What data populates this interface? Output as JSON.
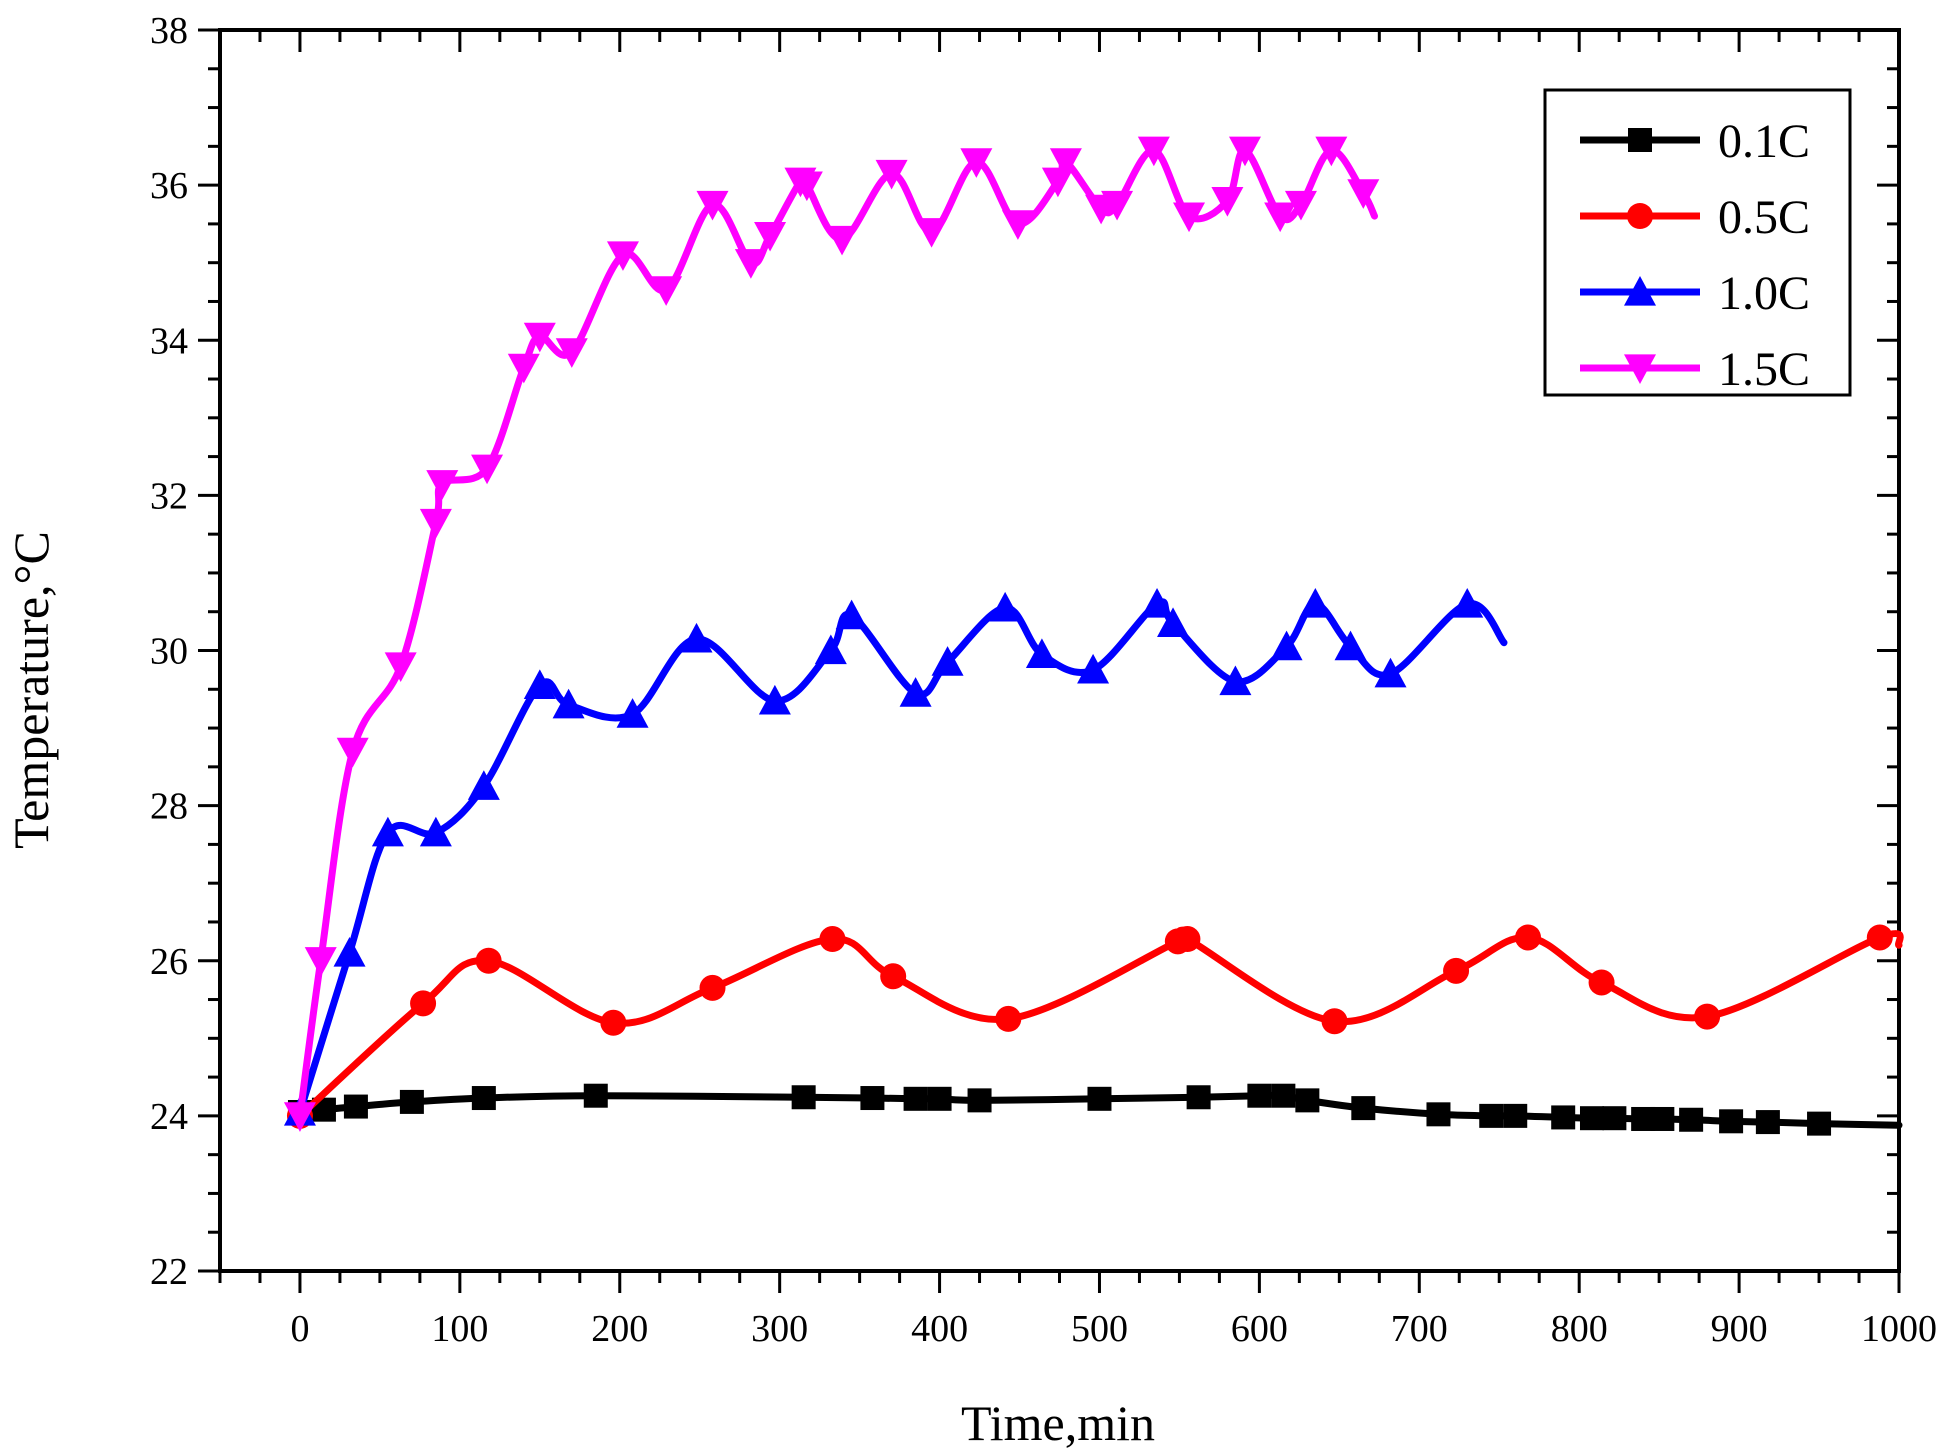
{
  "chart_data": {
    "type": "line",
    "title": "",
    "xlabel": "Time,min",
    "ylabel": "Temperature,°C",
    "xlim": [
      -50,
      1000
    ],
    "ylim": [
      22,
      38
    ],
    "xticks": [
      0,
      100,
      200,
      300,
      400,
      500,
      600,
      700,
      800,
      900,
      1000
    ],
    "yticks": [
      22,
      24,
      26,
      28,
      30,
      32,
      34,
      36,
      38
    ],
    "grid": false,
    "legend_position": "top-right",
    "series": [
      {
        "name": "0.1C",
        "color": "#000000",
        "marker": "square",
        "x": [
          0,
          15,
          35,
          70,
          115,
          185,
          315,
          358,
          385,
          400,
          425,
          500,
          562,
          600,
          615,
          630,
          665,
          712,
          745,
          760,
          790,
          808,
          822,
          840,
          852,
          870,
          895,
          918,
          950
        ],
        "y": [
          24.05,
          24.08,
          24.12,
          24.18,
          24.23,
          24.26,
          24.24,
          24.23,
          24.22,
          24.22,
          24.2,
          24.22,
          24.24,
          24.26,
          24.26,
          24.2,
          24.1,
          24.02,
          24.0,
          24.0,
          23.98,
          23.97,
          23.97,
          23.96,
          23.96,
          23.95,
          23.93,
          23.92,
          23.9
        ],
        "curve_end": [
          1000,
          23.88
        ]
      },
      {
        "name": "0.5C",
        "color": "#ff0000",
        "marker": "circle",
        "x": [
          0,
          77,
          118,
          196,
          258,
          333,
          371,
          443,
          549,
          555,
          647,
          723,
          768,
          814,
          880,
          988
        ],
        "y": [
          24.0,
          25.45,
          26.0,
          25.2,
          25.65,
          26.28,
          25.8,
          25.25,
          26.25,
          26.28,
          25.22,
          25.87,
          26.3,
          25.72,
          25.28,
          26.3
        ],
        "curve_end": [
          1000,
          26.2
        ]
      },
      {
        "name": "1.0C",
        "color": "#0000ff",
        "marker": "triangle-up",
        "x": [
          0,
          31,
          55,
          85,
          115,
          150,
          168,
          208,
          248,
          297,
          332,
          345,
          385,
          405,
          441,
          464,
          496,
          536,
          546,
          585,
          617,
          635,
          657,
          682,
          730
        ],
        "y": [
          24.05,
          26.1,
          27.65,
          27.65,
          28.25,
          29.55,
          29.3,
          29.18,
          30.15,
          29.35,
          30.0,
          30.45,
          29.45,
          29.85,
          30.55,
          29.95,
          29.75,
          30.6,
          30.35,
          29.6,
          30.05,
          30.6,
          30.05,
          29.7,
          30.6
        ],
        "curve_end": [
          753,
          30.1
        ]
      },
      {
        "name": "1.5C",
        "color": "#ff00ff",
        "marker": "triangle-down",
        "x": [
          0,
          13,
          33,
          63,
          85,
          89,
          117,
          140,
          150,
          170,
          202,
          229,
          258,
          282,
          294,
          313,
          317,
          339,
          370,
          395,
          423,
          449,
          474,
          479,
          501,
          511,
          534,
          556,
          580,
          591,
          613,
          626,
          645,
          665
        ],
        "y": [
          24.0,
          26.0,
          28.7,
          29.8,
          31.65,
          32.15,
          32.35,
          33.65,
          34.05,
          33.85,
          35.1,
          34.65,
          35.75,
          35.0,
          35.35,
          36.05,
          36.0,
          35.3,
          36.15,
          35.4,
          36.3,
          35.5,
          36.05,
          36.3,
          35.7,
          35.75,
          36.45,
          35.6,
          35.8,
          36.45,
          35.6,
          35.75,
          36.45,
          35.9
        ],
        "curve_end": [
          672,
          35.6
        ]
      }
    ]
  }
}
